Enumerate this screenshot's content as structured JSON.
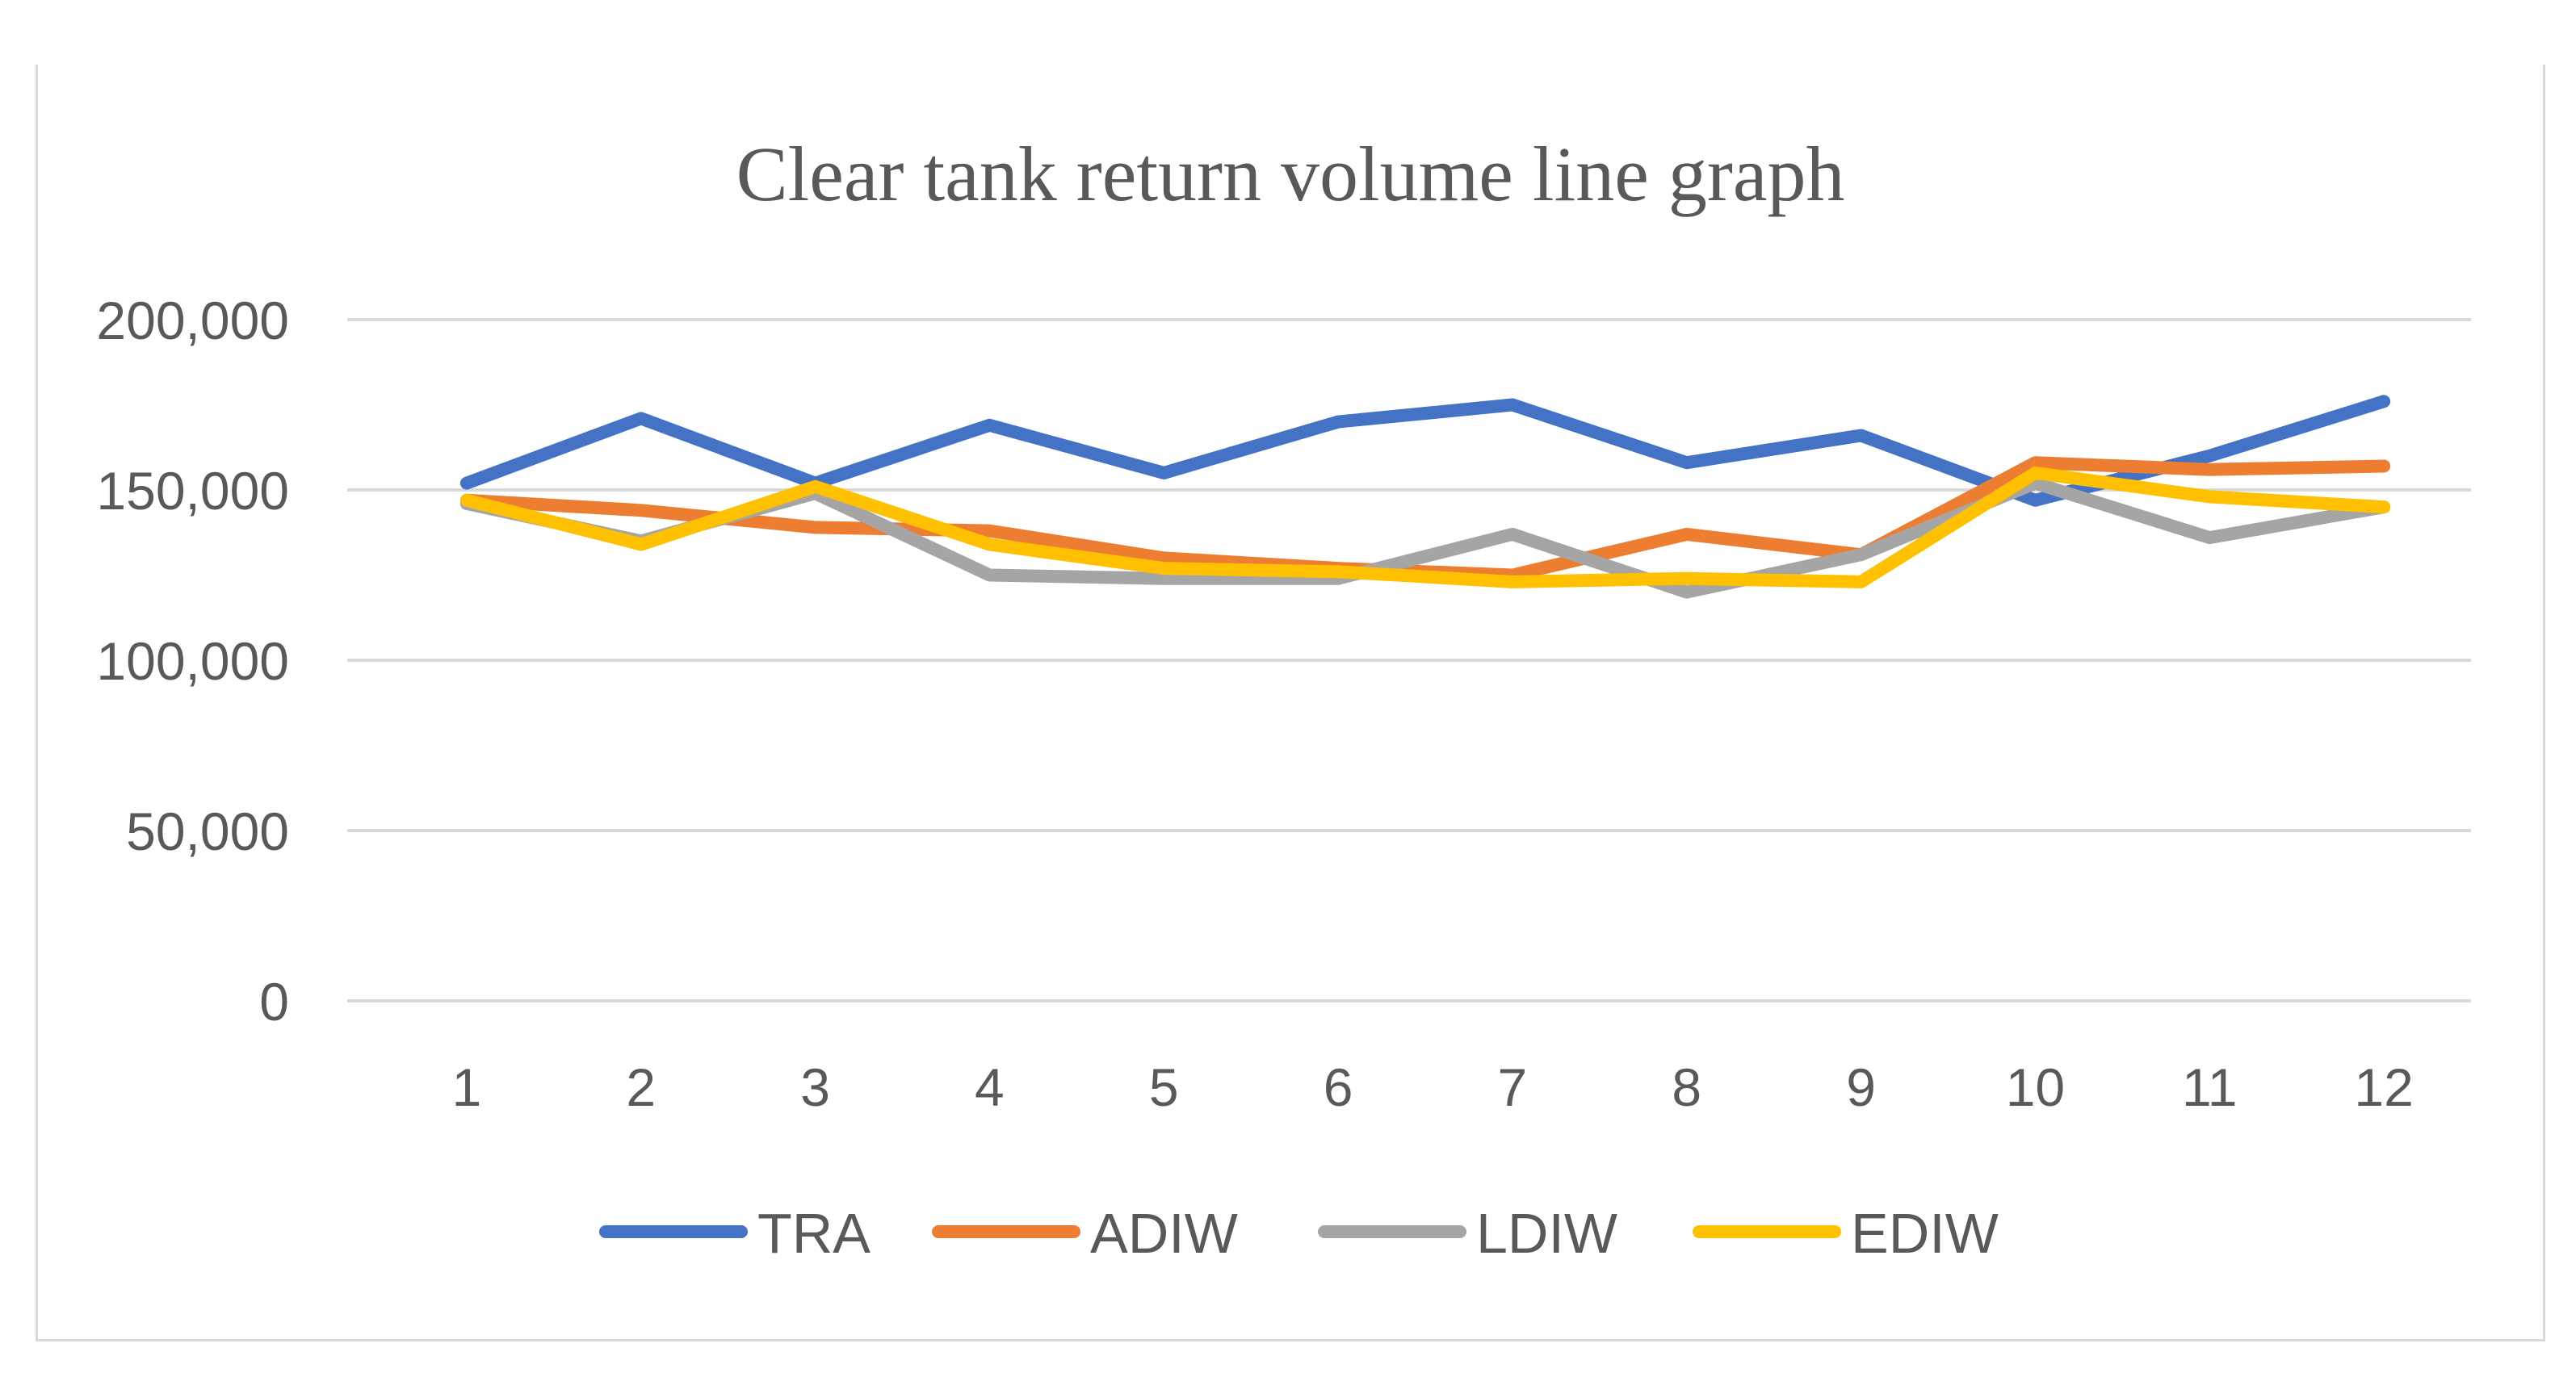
{
  "chart_data": {
    "type": "line",
    "title": "Clear tank return volume line graph",
    "xlabel": "",
    "ylabel": "",
    "categories": [
      "1",
      "2",
      "3",
      "4",
      "5",
      "6",
      "7",
      "8",
      "9",
      "10",
      "11",
      "12"
    ],
    "ylim": [
      0,
      200000
    ],
    "yticks": [
      0,
      50000,
      100000,
      150000,
      200000
    ],
    "ytick_labels": [
      "0",
      "50,000",
      "100,000",
      "150,000",
      "200,000"
    ],
    "grid": true,
    "legend_position": "bottom",
    "series": [
      {
        "name": "TRA",
        "color": "#4472C4",
        "values": [
          152000,
          171000,
          152000,
          169000,
          155000,
          170000,
          175000,
          158000,
          166000,
          147000,
          160000,
          176000
        ]
      },
      {
        "name": "ADIW",
        "color": "#ED7D31",
        "values": [
          147000,
          144000,
          139000,
          138000,
          130000,
          127000,
          125000,
          137000,
          131000,
          158000,
          156000,
          157000
        ]
      },
      {
        "name": "LDIW",
        "color": "#A5A5A5",
        "values": [
          146000,
          135000,
          149000,
          125000,
          124000,
          124000,
          137000,
          120000,
          131000,
          152000,
          136000,
          145000
        ]
      },
      {
        "name": "EDIW",
        "color": "#FFC000",
        "values": [
          147000,
          134000,
          151000,
          134000,
          127000,
          126000,
          123000,
          124000,
          123000,
          155000,
          148000,
          145000
        ]
      }
    ]
  }
}
